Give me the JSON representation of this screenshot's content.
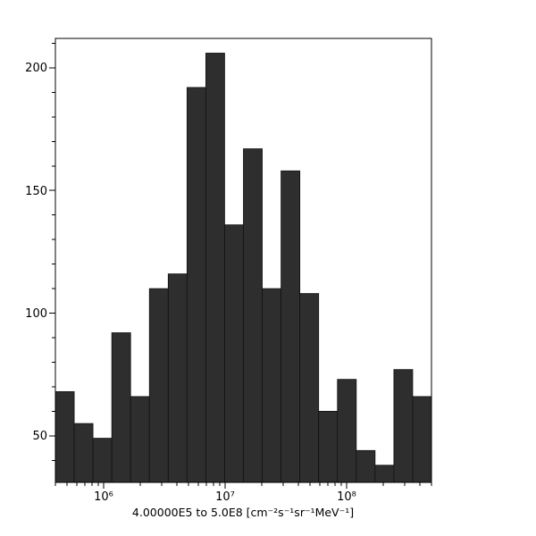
{
  "chart_data": {
    "type": "bar",
    "subtype": "histogram",
    "title": "",
    "xlabel": "4.00000E5 to 5.0E8 [cm⁻²s⁻¹sr⁻¹MeV⁻¹]",
    "ylabel": "",
    "x_scale": "log",
    "grid": false,
    "legend": false,
    "xlim": [
      400000,
      500000000
    ],
    "ylim": [
      31,
      212
    ],
    "bin_edges": [
      400000,
      571400,
      816100,
      1165700,
      1665000,
      2378000,
      3397000,
      4852000,
      6930000,
      9899000,
      14139000,
      20195000,
      28845000,
      41200000,
      58846000,
      84053000,
      120057000,
      171475000,
      244918000,
      349821000,
      500000000
    ],
    "values": [
      68,
      55,
      49,
      92,
      66,
      110,
      116,
      192,
      206,
      136,
      167,
      110,
      158,
      108,
      60,
      73,
      44,
      38,
      77,
      66
    ],
    "x_major_ticks": [
      1000000,
      10000000,
      100000000
    ],
    "x_major_tick_labels": [
      "10⁶",
      "10⁷",
      "10⁸"
    ],
    "y_major_ticks": [
      50,
      100,
      150,
      200
    ],
    "y_major_tick_labels": [
      "50",
      "100",
      "150",
      "200"
    ],
    "y_minor_step": 10,
    "bar_color": "#2e2e2e",
    "bar_edge_color": "#111111",
    "frame_color": "#000000",
    "background_color": "#ffffff"
  }
}
